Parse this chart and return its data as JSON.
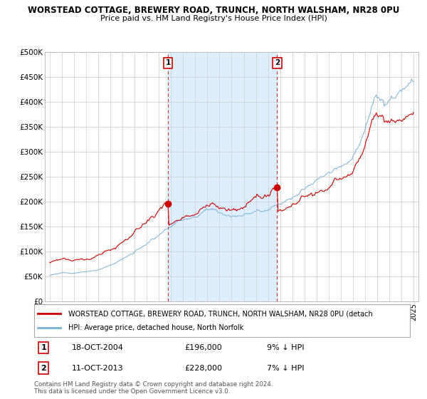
{
  "title1": "WORSTEAD COTTAGE, BREWERY ROAD, TRUNCH, NORTH WALSHAM, NR28 0PU",
  "title2": "Price paid vs. HM Land Registry's House Price Index (HPI)",
  "ylim": [
    0,
    500000
  ],
  "yticks": [
    0,
    50000,
    100000,
    150000,
    200000,
    250000,
    300000,
    350000,
    400000,
    450000,
    500000
  ],
  "ytick_labels": [
    "£0",
    "£50K",
    "£100K",
    "£150K",
    "£200K",
    "£250K",
    "£300K",
    "£350K",
    "£400K",
    "£450K",
    "£500K"
  ],
  "hpi_color": "#7ab0d4",
  "price_color": "#cc0000",
  "shade_color": "#ddeeff",
  "purchase_points": [
    {
      "year": 2004,
      "month": 10,
      "price": 196000,
      "label": "1"
    },
    {
      "year": 2013,
      "month": 10,
      "price": 228000,
      "label": "2"
    }
  ],
  "legend_line1": "WORSTEAD COTTAGE, BREWERY ROAD, TRUNCH, NORTH WALSHAM, NR28 0PU (detach",
  "legend_line2": "HPI: Average price, detached house, North Norfolk",
  "annot_rows": [
    {
      "label": "1",
      "date": "18-OCT-2004",
      "price": "£196,000",
      "pct": "9% ↓ HPI"
    },
    {
      "label": "2",
      "date": "11-OCT-2013",
      "price": "£228,000",
      "pct": "7% ↓ HPI"
    }
  ],
  "footer": "Contains HM Land Registry data © Crown copyright and database right 2024.\nThis data is licensed under the Open Government Licence v3.0.",
  "background_color": "#ffffff",
  "grid_color": "#cccccc",
  "xlim_left": 1994.6,
  "xlim_right": 2025.4
}
